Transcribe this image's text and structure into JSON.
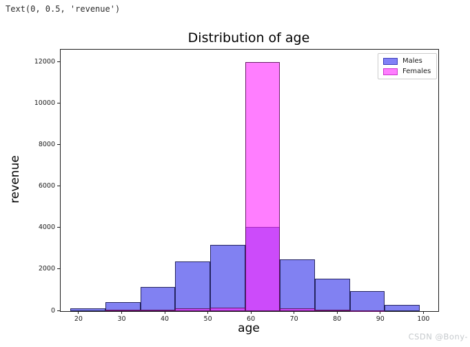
{
  "console_output": "Text(0, 0.5, 'revenue')",
  "watermark": "CSDN @Bony-",
  "chart_data": {
    "type": "histogram",
    "title": "Distribution of age",
    "xlabel": "age",
    "ylabel": "revenue",
    "xlim": [
      15.7,
      103.3
    ],
    "ylim": [
      0,
      12600
    ],
    "x_ticks": [
      20,
      30,
      40,
      50,
      60,
      70,
      80,
      90,
      100
    ],
    "y_ticks": [
      0,
      2000,
      4000,
      6000,
      8000,
      10000,
      12000
    ],
    "grid": false,
    "bin_edges": [
      18,
      26.1,
      34.2,
      42.3,
      50.4,
      58.5,
      66.6,
      74.7,
      82.8,
      90.9,
      99
    ],
    "series": [
      {
        "name": "Males",
        "values": [
          130,
          420,
          1170,
          2400,
          3200,
          4050,
          2500,
          1550,
          950,
          300
        ],
        "css_fill": "rgba(55,55,235,0.63)",
        "css_edge": "rgba(20,20,70,0.85)",
        "legend_fill": "#8181f7",
        "legend_edge": "#3939b8"
      },
      {
        "name": "Females",
        "values": [
          0,
          60,
          60,
          130,
          160,
          12000,
          130,
          60,
          30,
          0
        ],
        "css_fill": "rgba(255,40,255,0.60)",
        "css_edge": "rgba(80,10,80,0.85)",
        "legend_fill": "#ff7eff",
        "legend_edge": "#cc33cc"
      }
    ],
    "legend_position": "upper right"
  }
}
